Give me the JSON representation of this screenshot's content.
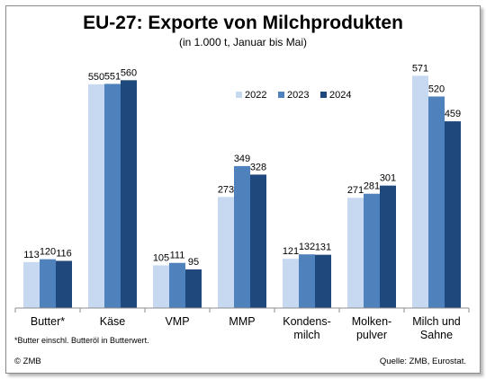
{
  "chart_data": {
    "type": "bar",
    "title": "EU-27: Exporte von Milchprodukten",
    "subtitle": "(in 1.000 t, Januar bis Mai)",
    "categories": [
      [
        "Butter*"
      ],
      [
        "Käse"
      ],
      [
        "VMP"
      ],
      [
        "MMP"
      ],
      [
        "Kondens-",
        "milch"
      ],
      [
        "Molken-",
        "pulver"
      ],
      [
        "Milch und",
        "Sahne"
      ]
    ],
    "series": [
      {
        "name": "2022",
        "color": "#c6d9f1",
        "values": [
          113,
          550,
          105,
          273,
          121,
          271,
          571
        ]
      },
      {
        "name": "2023",
        "color": "#4f81bd",
        "values": [
          120,
          551,
          111,
          349,
          132,
          281,
          520
        ]
      },
      {
        "name": "2024",
        "color": "#1f497d",
        "values": [
          116,
          560,
          95,
          328,
          131,
          301,
          459
        ]
      }
    ],
    "ylim": [
      0,
      600
    ],
    "grid": false,
    "legend_position": "top-right",
    "footnote": "*Butter einschl. Butteröl in Butterwert.",
    "logo": "© ZMB",
    "source": "Quelle: ZMB, Eurostat."
  }
}
